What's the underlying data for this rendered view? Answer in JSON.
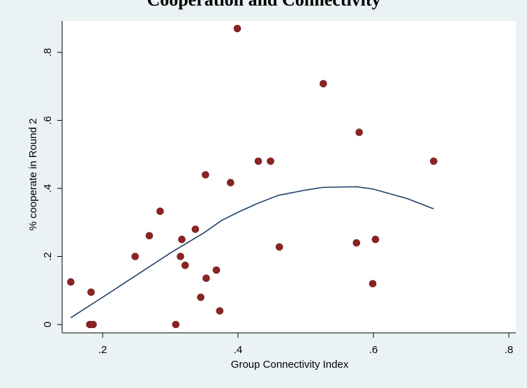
{
  "chart_data": {
    "type": "scatter",
    "title": "Cooperation and Connectivity",
    "xlabel": "Group Connectivity Index",
    "ylabel": "% cooperate in Round 2",
    "xlim": [
      0.15,
      0.8
    ],
    "ylim": [
      0,
      0.9
    ],
    "x_ticks": [
      0.2,
      0.4,
      0.6,
      0.8
    ],
    "x_tick_labels": [
      ".2",
      ".4",
      ".6",
      ".8"
    ],
    "y_ticks": [
      0,
      0.2,
      0.4,
      0.6,
      0.8
    ],
    "y_tick_labels": [
      "0",
      ".2",
      ".4",
      ".6",
      ".8"
    ],
    "grid": false,
    "marker_color": "#8b2323",
    "line_color": "#1f3f66",
    "points": [
      {
        "x": 0.153,
        "y": 0.125
      },
      {
        "x": 0.181,
        "y": 0.0
      },
      {
        "x": 0.183,
        "y": 0.095
      },
      {
        "x": 0.186,
        "y": 0.0
      },
      {
        "x": 0.248,
        "y": 0.2
      },
      {
        "x": 0.269,
        "y": 0.261
      },
      {
        "x": 0.285,
        "y": 0.333
      },
      {
        "x": 0.308,
        "y": 0.0
      },
      {
        "x": 0.315,
        "y": 0.2
      },
      {
        "x": 0.317,
        "y": 0.25
      },
      {
        "x": 0.322,
        "y": 0.174
      },
      {
        "x": 0.337,
        "y": 0.28
      },
      {
        "x": 0.345,
        "y": 0.08
      },
      {
        "x": 0.352,
        "y": 0.44
      },
      {
        "x": 0.353,
        "y": 0.136
      },
      {
        "x": 0.368,
        "y": 0.16
      },
      {
        "x": 0.373,
        "y": 0.04
      },
      {
        "x": 0.389,
        "y": 0.417
      },
      {
        "x": 0.399,
        "y": 0.87
      },
      {
        "x": 0.43,
        "y": 0.48
      },
      {
        "x": 0.448,
        "y": 0.48
      },
      {
        "x": 0.461,
        "y": 0.228
      },
      {
        "x": 0.526,
        "y": 0.708
      },
      {
        "x": 0.575,
        "y": 0.24
      },
      {
        "x": 0.579,
        "y": 0.565
      },
      {
        "x": 0.599,
        "y": 0.12
      },
      {
        "x": 0.603,
        "y": 0.25
      },
      {
        "x": 0.689,
        "y": 0.48
      }
    ],
    "fit_line": {
      "x": [
        0.153,
        0.2,
        0.25,
        0.3,
        0.35,
        0.375,
        0.4,
        0.43,
        0.46,
        0.5,
        0.525,
        0.575,
        0.6,
        0.65,
        0.689
      ],
      "y": [
        0.02,
        0.08,
        0.145,
        0.21,
        0.27,
        0.305,
        0.33,
        0.357,
        0.38,
        0.395,
        0.403,
        0.405,
        0.398,
        0.37,
        0.34
      ]
    }
  }
}
